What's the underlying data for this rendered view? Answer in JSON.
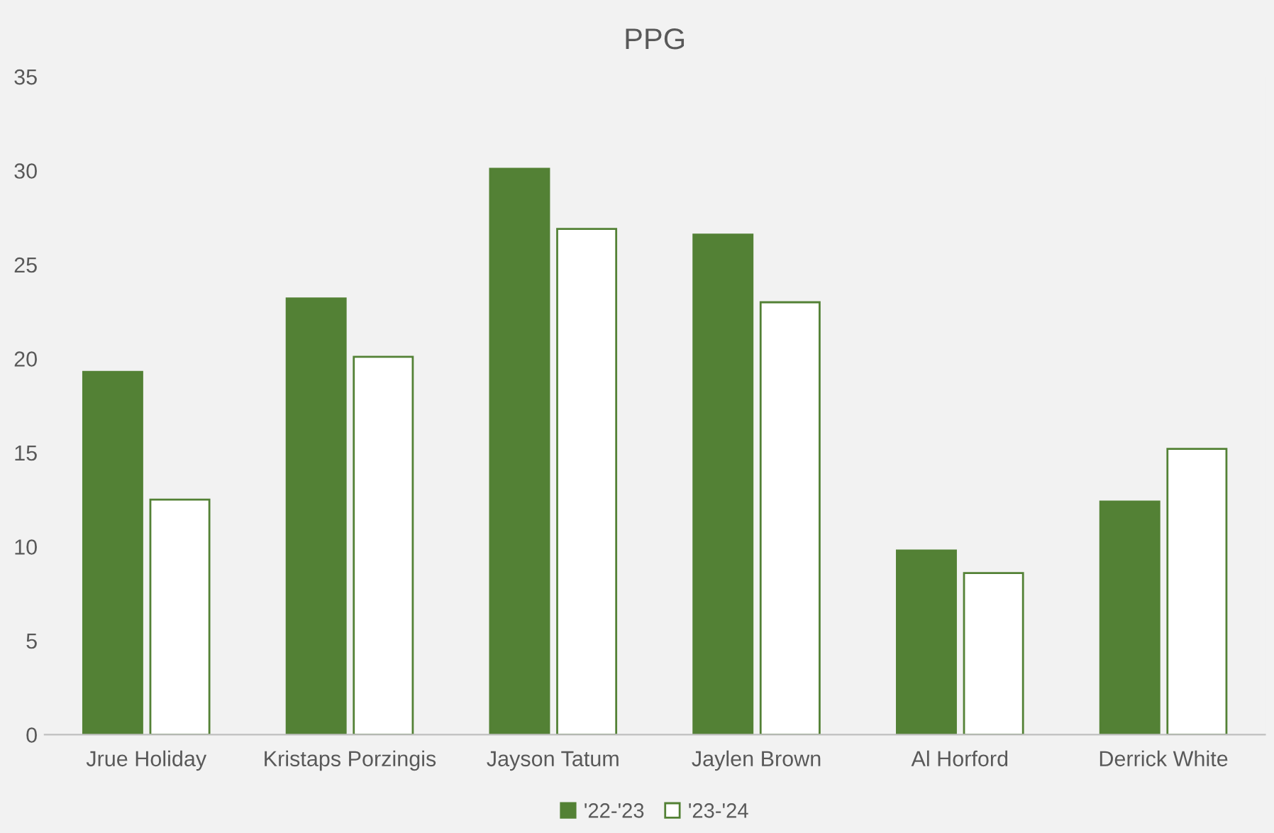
{
  "chart_data": {
    "type": "bar",
    "title": "PPG",
    "categories": [
      "Jrue Holiday",
      "Kristaps Porzingis",
      "Jayson Tatum",
      "Jaylen Brown",
      "Al Horford",
      "Derrick White"
    ],
    "series": [
      {
        "name": "'22-'23",
        "color": "#538135",
        "values": [
          19.3,
          23.2,
          30.1,
          26.6,
          9.8,
          12.4
        ]
      },
      {
        "name": "'23-'24",
        "color": "#ffffff",
        "values": [
          12.5,
          20.1,
          26.9,
          23.0,
          8.6,
          15.2
        ]
      }
    ],
    "ylim": [
      0,
      35
    ],
    "yticks": [
      0,
      5,
      10,
      15,
      20,
      25,
      30,
      35
    ],
    "grid": false,
    "legend": "bottom"
  }
}
